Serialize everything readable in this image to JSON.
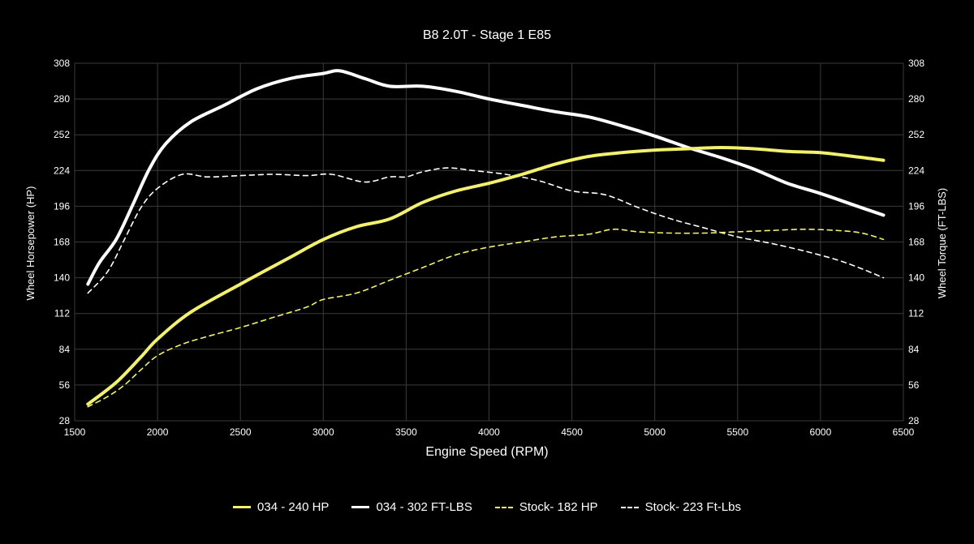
{
  "chart_data": {
    "type": "line",
    "title": "B8 2.0T - Stage 1 E85",
    "xlabel": "Engine Speed (RPM)",
    "ylabel_left": "Wheel Horsepower (HP)",
    "ylabel_right": "Wheel Torque (FT-LBS)",
    "xlim": [
      1500,
      6500
    ],
    "ylim": [
      28,
      308
    ],
    "x_ticks": [
      "1500",
      "2000",
      "2500",
      "3000",
      "3500",
      "4000",
      "4500",
      "5000",
      "5500",
      "6000",
      "6500"
    ],
    "y_ticks": [
      "28",
      "56",
      "84",
      "112",
      "140",
      "168",
      "196",
      "224",
      "252",
      "280",
      "308"
    ],
    "grid": true,
    "legend_position": "bottom",
    "series": [
      {
        "name": "034 - 240 HP",
        "color": "#f2f06e",
        "style": "solid",
        "x": [
          1580,
          1750,
          1900,
          2000,
          2200,
          2500,
          2800,
          3000,
          3200,
          3400,
          3600,
          3800,
          4000,
          4200,
          4400,
          4600,
          4800,
          5000,
          5200,
          5400,
          5600,
          5800,
          6000,
          6200,
          6380
        ],
        "y": [
          41,
          58,
          78,
          92,
          113,
          135,
          156,
          170,
          180,
          186,
          199,
          208,
          214,
          221,
          229,
          235,
          238,
          240,
          241,
          242,
          241,
          239,
          238,
          235,
          232
        ]
      },
      {
        "name": "034 - 302 FT-LBS",
        "color": "#ffffff",
        "style": "solid",
        "x": [
          1580,
          1650,
          1750,
          1850,
          1950,
          2050,
          2200,
          2400,
          2600,
          2800,
          3000,
          3100,
          3250,
          3400,
          3600,
          3800,
          4000,
          4200,
          4400,
          4600,
          4800,
          5000,
          5200,
          5400,
          5600,
          5800,
          6000,
          6200,
          6380
        ],
        "y": [
          135,
          152,
          170,
          197,
          225,
          245,
          262,
          275,
          288,
          296,
          300,
          302,
          296,
          290,
          290,
          286,
          280,
          275,
          270,
          266,
          259,
          251,
          242,
          234,
          225,
          214,
          206,
          197,
          189
        ]
      },
      {
        "name": "Stock- 182 HP",
        "color": "#f2f06e",
        "style": "dashed",
        "x": [
          1580,
          1700,
          1800,
          1900,
          2000,
          2150,
          2300,
          2500,
          2700,
          2900,
          3000,
          3200,
          3400,
          3600,
          3800,
          4000,
          4200,
          4400,
          4600,
          4750,
          4900,
          5100,
          5300,
          5500,
          5700,
          5900,
          6100,
          6250,
          6380
        ],
        "y": [
          39,
          47,
          56,
          68,
          79,
          88,
          94,
          101,
          109,
          117,
          123,
          128,
          138,
          148,
          158,
          164,
          168,
          172,
          174,
          178,
          176,
          175,
          175,
          176,
          177,
          178,
          177,
          175,
          170
        ]
      },
      {
        "name": "Stock- 223 Ft-Lbs",
        "color": "#ffffff",
        "style": "dashed",
        "x": [
          1580,
          1700,
          1800,
          1900,
          2000,
          2150,
          2300,
          2500,
          2700,
          2900,
          3050,
          3250,
          3400,
          3500,
          3600,
          3750,
          3900,
          4100,
          4300,
          4500,
          4700,
          4900,
          5100,
          5300,
          5500,
          5700,
          5900,
          6100,
          6250,
          6380
        ],
        "y": [
          128,
          145,
          170,
          195,
          210,
          221,
          219,
          220,
          221,
          220,
          221,
          215,
          219,
          219,
          223,
          226,
          224,
          221,
          216,
          208,
          205,
          195,
          186,
          179,
          172,
          167,
          161,
          154,
          147,
          140
        ]
      }
    ]
  }
}
